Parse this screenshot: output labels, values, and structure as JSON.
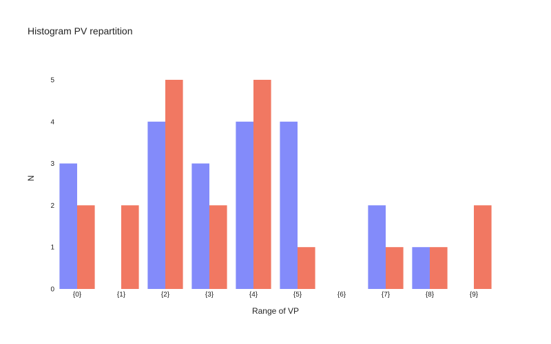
{
  "chart_data": {
    "type": "bar",
    "title": "Histogram PV repartition",
    "xlabel": "Range of VP",
    "ylabel": "N",
    "categories": [
      "{0}",
      "{1}",
      "{2}",
      "{3}",
      "{4}",
      "{5}",
      "{6}",
      "{7}",
      "{8}",
      "{9}"
    ],
    "series": [
      {
        "color": "#838BFA",
        "values": [
          3,
          0,
          4,
          3,
          4,
          4,
          0,
          2,
          1,
          0
        ]
      },
      {
        "color": "#F17862",
        "values": [
          2,
          2,
          5,
          2,
          5,
          1,
          0,
          1,
          1,
          2
        ]
      }
    ],
    "yticks": [
      "0",
      "1",
      "2",
      "3",
      "4",
      "5"
    ],
    "ylim": [
      0,
      5.3
    ],
    "grid": false,
    "legend": "none"
  }
}
